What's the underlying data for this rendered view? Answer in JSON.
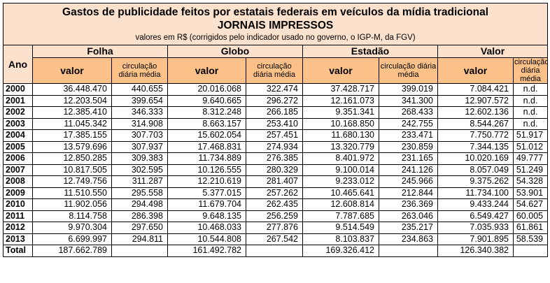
{
  "title": "Gastos de publicidade feitos por estatais federais em veículos da mídia tradicional",
  "subtitle": "JORNAIS IMPRESSOS",
  "note": "valores em R$ (corrigidos pelo indicador usado no governo, o IGP-M, da FGV)",
  "year_header": "Ano",
  "groups": [
    "Folha",
    "Globo",
    "Estadão",
    "Valor"
  ],
  "sub_valor": "valor",
  "sub_circ": "circulação diária média",
  "rows": [
    {
      "year": "2000",
      "cells": [
        "36.448.470",
        "440.655",
        "20.016.068",
        "322.474",
        "37.428.717",
        "399.019",
        "7.084.421",
        "n.d."
      ]
    },
    {
      "year": "2001",
      "cells": [
        "12.203.504",
        "399.654",
        "9.640.665",
        "296.272",
        "12.161.073",
        "341.300",
        "12.907.572",
        "n.d."
      ]
    },
    {
      "year": "2002",
      "cells": [
        "12.385.410",
        "346.333",
        "8.312.248",
        "266.185",
        "9.351.341",
        "268.433",
        "12.602.136",
        "n.d."
      ]
    },
    {
      "year": "2003",
      "cells": [
        "11.045.342",
        "314.908",
        "8.663.157",
        "253.410",
        "10.168.850",
        "242.755",
        "8.544.267",
        "n.d."
      ]
    },
    {
      "year": "2004",
      "cells": [
        "17.385.155",
        "307.703",
        "15.602.054",
        "257.451",
        "11.680.130",
        "233.471",
        "7.750.772",
        "51.917"
      ]
    },
    {
      "year": "2005",
      "cells": [
        "13.579.696",
        "307.937",
        "17.468.831",
        "274.934",
        "13.320.779",
        "230.859",
        "7.344.135",
        "51.012"
      ]
    },
    {
      "year": "2006",
      "cells": [
        "12.850.285",
        "309.383",
        "11.734.889",
        "276.385",
        "8.401.972",
        "231.165",
        "10.020.169",
        "49.777"
      ]
    },
    {
      "year": "2007",
      "cells": [
        "10.817.505",
        "302.595",
        "10.126.555",
        "280.329",
        "9.100.014",
        "241.126",
        "8.057.049",
        "51.249"
      ]
    },
    {
      "year": "2008",
      "cells": [
        "12.749.756",
        "311.287",
        "12.210.619",
        "281.407",
        "9.233.012",
        "245.966",
        "9.375.262",
        "54.328"
      ]
    },
    {
      "year": "2009",
      "cells": [
        "11.510.550",
        "295.558",
        "5.377.015",
        "257.262",
        "10.465.641",
        "212.844",
        "11.734.100",
        "53.901"
      ]
    },
    {
      "year": "2010",
      "cells": [
        "11.902.056",
        "294.498",
        "11.679.704",
        "262.435",
        "12.608.814",
        "236.369",
        "9.433.244",
        "54.627"
      ]
    },
    {
      "year": "2011",
      "cells": [
        "8.114.758",
        "286.398",
        "9.648.135",
        "256.259",
        "7.787.685",
        "263.046",
        "6.549.427",
        "60.005"
      ]
    },
    {
      "year": "2012",
      "cells": [
        "9.970.304",
        "297.650",
        "10.468.033",
        "277.876",
        "9.514.549",
        "235.217",
        "7.035.933",
        "61.861"
      ]
    },
    {
      "year": "2013",
      "cells": [
        "6.699.997",
        "294.811",
        "10.544.808",
        "267.542",
        "8.103.837",
        "234.863",
        "7.901.895",
        "58.539"
      ]
    }
  ],
  "total": {
    "label": "Total",
    "cells": [
      "187.662.789",
      "",
      "161.492.782",
      "",
      "169.326.412",
      "",
      "126.340.382",
      ""
    ]
  },
  "colors": {
    "header_light": "#fce2cd",
    "header_orange": "#fbc189",
    "border": "#000000"
  }
}
